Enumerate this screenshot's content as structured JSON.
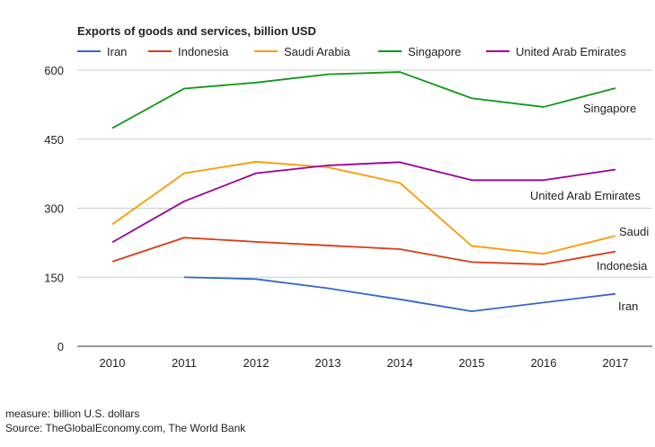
{
  "chart_data": {
    "type": "line",
    "title": "Exports of goods and services, billion USD",
    "xlabel": "",
    "ylabel": "",
    "categories": [
      "2010",
      "2011",
      "2012",
      "2013",
      "2014",
      "2015",
      "2016",
      "2017"
    ],
    "ylim": [
      0,
      600
    ],
    "yticks": [
      0,
      150,
      300,
      450,
      600
    ],
    "grid": true,
    "legend_position": "top",
    "series": [
      {
        "name": "Iran",
        "label": "Iran",
        "color": "#3366cc",
        "values": [
          null,
          150,
          146,
          126,
          102,
          76,
          95,
          114
        ]
      },
      {
        "name": "Indonesia",
        "label": "Indonesia",
        "color": "#dc3912",
        "values": [
          184,
          236,
          227,
          219,
          211,
          183,
          178,
          206
        ]
      },
      {
        "name": "Saudi Arabia",
        "label": "Saudi",
        "color": "#ff9900",
        "values": [
          265,
          376,
          401,
          389,
          355,
          218,
          201,
          240
        ]
      },
      {
        "name": "Singapore",
        "label": "Singapore",
        "color": "#109618",
        "values": [
          474,
          560,
          573,
          591,
          596,
          539,
          520,
          561
        ]
      },
      {
        "name": "United Arab Emirates",
        "label": "United Arab Emirates",
        "color": "#990099",
        "values": [
          226,
          315,
          376,
          393,
          400,
          361,
          361,
          384
        ]
      }
    ]
  },
  "footer": {
    "measure": "measure: billion U.S. dollars",
    "source": "Source: TheGlobalEconomy.com, The World Bank"
  }
}
